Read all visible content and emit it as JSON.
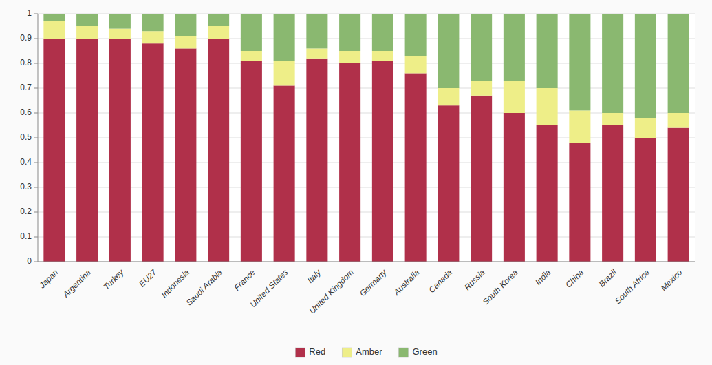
{
  "chart_data": {
    "type": "bar",
    "stacked": true,
    "categories": [
      "Japan",
      "Argentina",
      "Turkey",
      "EU27",
      "Indonesia",
      "Saudi Arabia",
      "France",
      "United States",
      "Italy",
      "United Kingdom",
      "Germany",
      "Australia",
      "Canada",
      "Russia",
      "South Korea",
      "India",
      "China",
      "Brazil",
      "South Africa",
      "Mexico"
    ],
    "series": [
      {
        "name": "Red",
        "color": "#b0304a",
        "values": [
          0.9,
          0.9,
          0.9,
          0.88,
          0.86,
          0.9,
          0.81,
          0.71,
          0.82,
          0.8,
          0.81,
          0.76,
          0.63,
          0.67,
          0.6,
          0.55,
          0.48,
          0.55,
          0.5,
          0.54
        ]
      },
      {
        "name": "Amber",
        "color": "#eeee88",
        "values": [
          0.07,
          0.05,
          0.04,
          0.05,
          0.05,
          0.05,
          0.04,
          0.1,
          0.04,
          0.05,
          0.04,
          0.07,
          0.07,
          0.06,
          0.13,
          0.15,
          0.13,
          0.05,
          0.08,
          0.06
        ]
      },
      {
        "name": "Green",
        "color": "#8ab870",
        "values": [
          0.03,
          0.05,
          0.06,
          0.07,
          0.09,
          0.05,
          0.15,
          0.19,
          0.14,
          0.15,
          0.15,
          0.17,
          0.3,
          0.27,
          0.27,
          0.3,
          0.39,
          0.4,
          0.42,
          0.4
        ]
      }
    ],
    "ylim": [
      0,
      1
    ],
    "yticks": [
      0,
      0.1,
      0.2,
      0.3,
      0.4,
      0.5,
      0.6,
      0.7,
      0.8,
      0.9,
      1
    ],
    "grid": true,
    "legend": "bottom"
  }
}
